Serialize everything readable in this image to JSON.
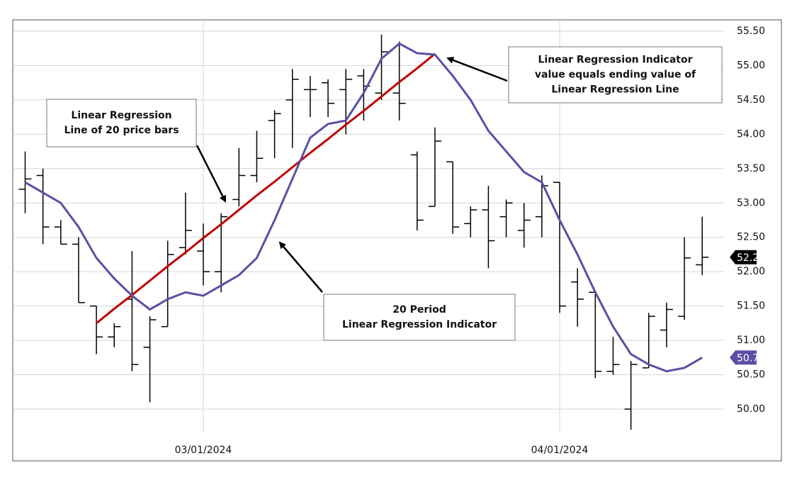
{
  "chart_data": {
    "type": "ohlc",
    "categories": [
      null,
      null,
      null,
      null,
      null,
      null,
      null,
      null,
      null,
      null,
      "03/01/2024",
      null,
      null,
      null,
      null,
      null,
      null,
      null,
      null,
      null,
      null,
      null,
      null,
      null,
      null,
      null,
      null,
      null,
      null,
      null,
      "04/01/2024",
      null,
      null,
      null,
      null,
      null,
      null,
      null,
      null
    ],
    "ohlc": {
      "color": "#000000",
      "open": [
        53.2,
        53.4,
        52.65,
        52.4,
        51.5,
        51.05,
        51.6,
        50.9,
        51.2,
        52.35,
        52.3,
        52.0,
        53.05,
        53.4,
        54.2,
        54.5,
        54.65,
        54.75,
        54.65,
        54.85,
        54.6,
        54.6,
        53.7,
        52.95,
        53.6,
        52.7,
        52.9,
        52.8,
        52.6,
        52.8,
        53.3,
        51.85,
        51.7,
        50.55,
        50.0,
        50.6,
        51.15,
        51.35,
        52.1
      ],
      "high": [
        53.75,
        53.5,
        52.75,
        52.5,
        51.5,
        51.25,
        52.3,
        51.35,
        52.45,
        53.15,
        52.7,
        52.85,
        53.8,
        54.05,
        54.35,
        54.95,
        54.85,
        54.8,
        54.95,
        54.95,
        55.45,
        55.35,
        53.75,
        54.1,
        53.6,
        52.95,
        53.25,
        53.05,
        53.0,
        53.4,
        53.3,
        52.05,
        51.7,
        51.05,
        50.7,
        51.4,
        51.55,
        52.5,
        52.8
      ],
      "low": [
        52.85,
        52.4,
        52.4,
        51.55,
        50.8,
        50.9,
        50.55,
        50.1,
        51.2,
        52.25,
        51.8,
        51.7,
        52.95,
        53.3,
        53.65,
        53.8,
        54.25,
        54.25,
        54.0,
        54.2,
        54.5,
        54.2,
        52.6,
        52.95,
        52.55,
        52.5,
        52.05,
        52.5,
        52.35,
        52.5,
        51.4,
        51.2,
        50.45,
        50.5,
        49.7,
        50.6,
        50.9,
        51.3,
        51.95
      ],
      "close": [
        53.35,
        52.65,
        52.4,
        51.55,
        51.05,
        51.2,
        50.65,
        51.3,
        52.25,
        52.6,
        52.0,
        52.8,
        53.4,
        53.65,
        54.3,
        54.8,
        54.65,
        54.45,
        54.8,
        54.7,
        55.2,
        54.45,
        52.75,
        53.9,
        52.65,
        52.9,
        52.45,
        53.0,
        52.75,
        53.25,
        51.5,
        51.6,
        50.55,
        50.65,
        50.65,
        51.35,
        51.45,
        52.2,
        52.21
      ]
    },
    "lines": [
      {
        "color": "#c00000",
        "values": [
          null,
          null,
          null,
          null,
          51.25,
          51.46,
          51.66,
          51.87,
          52.08,
          52.28,
          52.49,
          52.69,
          52.9,
          53.11,
          53.31,
          53.52,
          53.73,
          53.93,
          54.14,
          54.34,
          54.55,
          54.76,
          54.96,
          55.17,
          null,
          null,
          null,
          null,
          null,
          null,
          null,
          null,
          null,
          null,
          null,
          null,
          null,
          null,
          null
        ]
      },
      {
        "color": "#5a4fa5",
        "values": [
          53.3,
          53.15,
          53.0,
          52.65,
          52.2,
          51.9,
          51.65,
          51.45,
          51.6,
          51.7,
          51.65,
          51.8,
          51.95,
          52.2,
          52.75,
          53.35,
          53.95,
          54.15,
          54.2,
          54.6,
          55.1,
          55.32,
          55.18,
          55.16,
          54.85,
          54.5,
          54.05,
          53.75,
          53.45,
          53.3,
          52.75,
          52.25,
          51.7,
          51.2,
          50.8,
          50.65,
          50.55,
          50.6,
          50.75
        ]
      }
    ],
    "ylim": [
      49.7,
      55.62
    ],
    "yticks": [
      {
        "value": 50,
        "label": "50.00"
      },
      {
        "value": 50.5,
        "label": "50.50"
      },
      {
        "value": 51,
        "label": "51.00"
      },
      {
        "value": 51.5,
        "label": "51.50"
      },
      {
        "value": 52,
        "label": "52.00"
      },
      {
        "value": 52.5,
        "label": "52.50"
      },
      {
        "value": 53,
        "label": "53.00"
      },
      {
        "value": 53.5,
        "label": "53.50"
      },
      {
        "value": 54,
        "label": "54.00"
      },
      {
        "value": 54.5,
        "label": "54.50"
      },
      {
        "value": 55,
        "label": "55.00"
      },
      {
        "value": 55.5,
        "label": "55.50"
      }
    ],
    "grid": true,
    "annotations": [
      {
        "lines": [
          "Linear Regression",
          "Line of 20 price bars"
        ]
      },
      {
        "lines": [
          "20 Period",
          "Linear Regression Indicator"
        ]
      },
      {
        "lines": [
          "Linear Regression Indicator",
          "value equals ending value of",
          "Linear Regression Line"
        ]
      }
    ]
  }
}
